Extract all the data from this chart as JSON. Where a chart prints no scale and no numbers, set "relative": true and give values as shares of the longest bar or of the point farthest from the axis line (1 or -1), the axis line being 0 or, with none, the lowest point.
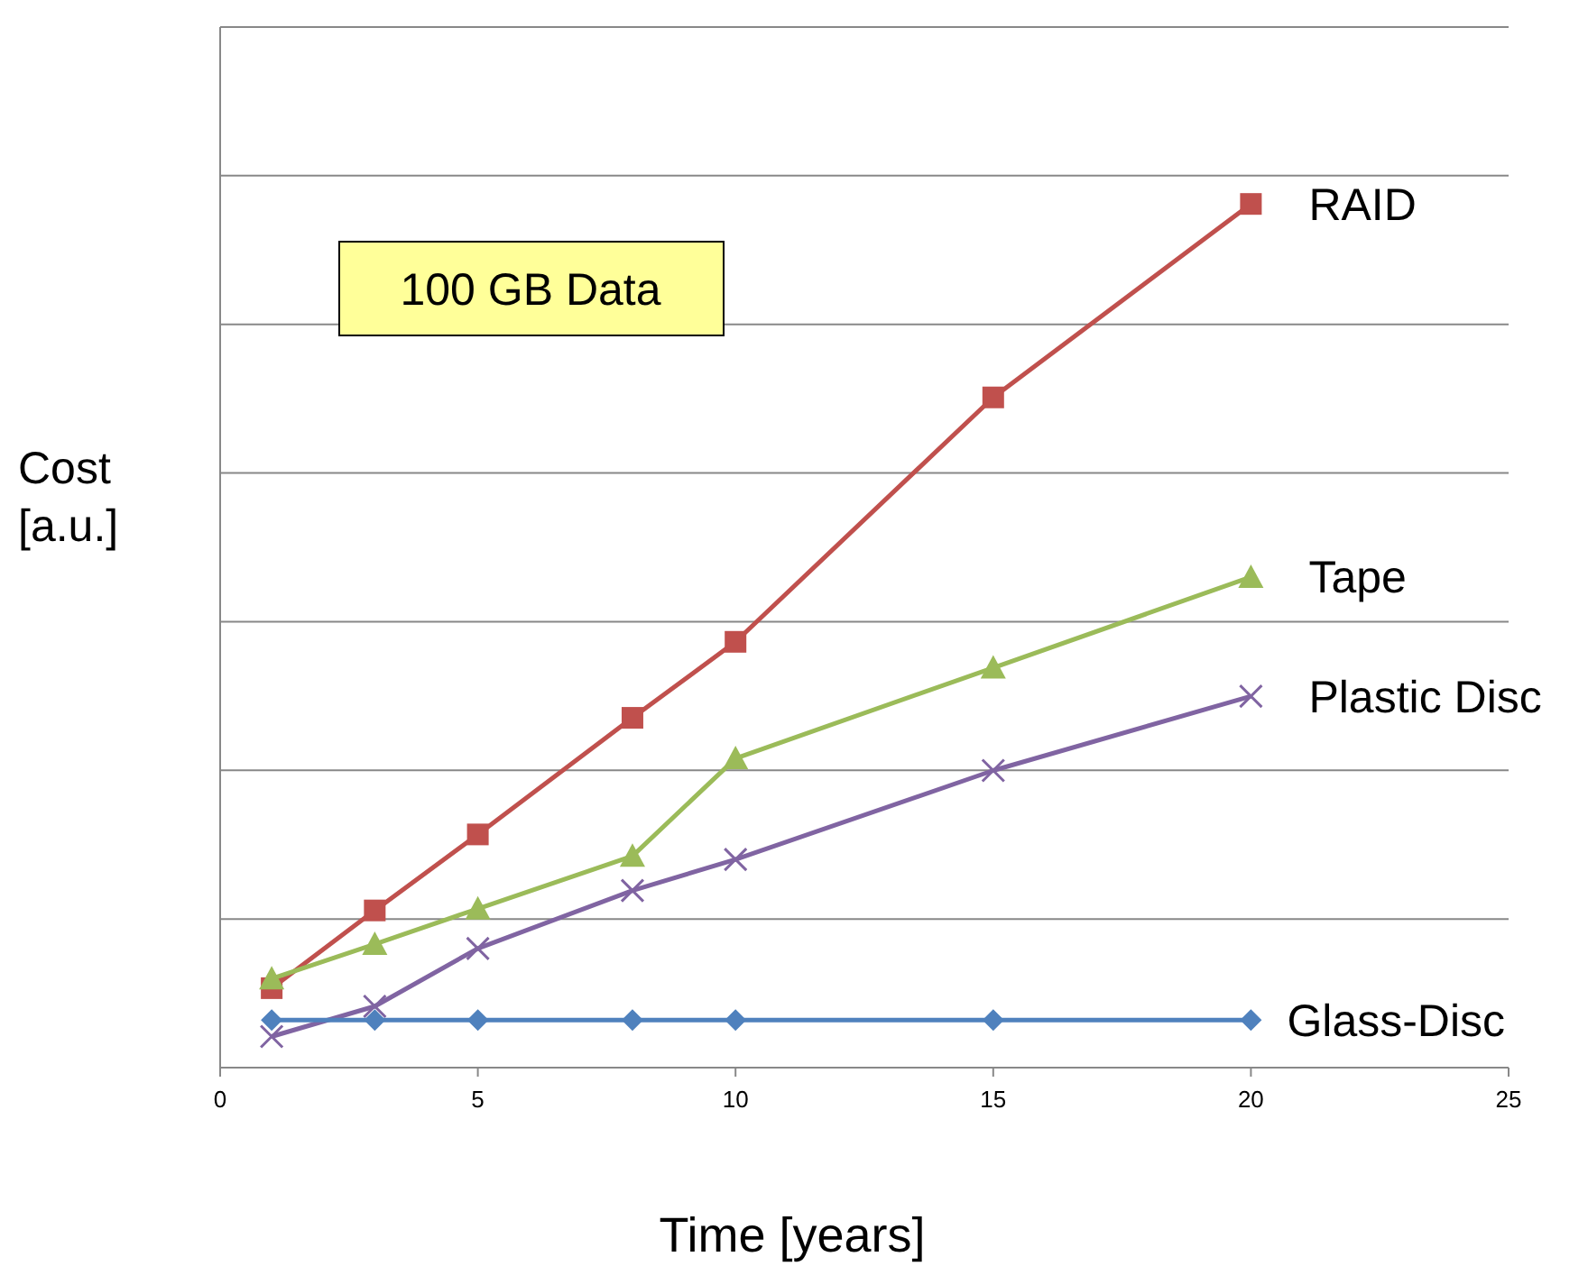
{
  "chart_data": {
    "type": "line",
    "relative": true,
    "xlabel": "Time [years]",
    "ylabel": "Cost [a.u.]",
    "annotations": [
      "100 GB Data"
    ],
    "x": [
      1,
      3,
      5,
      8,
      10,
      15,
      20
    ],
    "xlim": [
      0,
      25
    ],
    "xticks": [
      0,
      5,
      10,
      15,
      20,
      25
    ],
    "grid": "y",
    "series": [
      {
        "name": "RAID",
        "color": "#c0504d",
        "marker": "square",
        "values": [
          0.092,
          0.182,
          0.27,
          0.405,
          0.493,
          0.776,
          1
        ]
      },
      {
        "name": "Tape",
        "color": "#9bbb59",
        "marker": "triangle",
        "values": [
          0.103,
          0.143,
          0.184,
          0.245,
          0.358,
          0.463,
          0.568
        ]
      },
      {
        "name": "Plastic Disc",
        "color": "#8064a2",
        "marker": "cross",
        "values": [
          0.036,
          0.071,
          0.138,
          0.205,
          0.241,
          0.344,
          0.43
        ]
      },
      {
        "name": "Glass-Disc",
        "color": "#4f81bd",
        "marker": "diamond",
        "values": [
          0.055,
          0.055,
          0.055,
          0.055,
          0.055,
          0.055,
          0.055
        ]
      }
    ]
  }
}
